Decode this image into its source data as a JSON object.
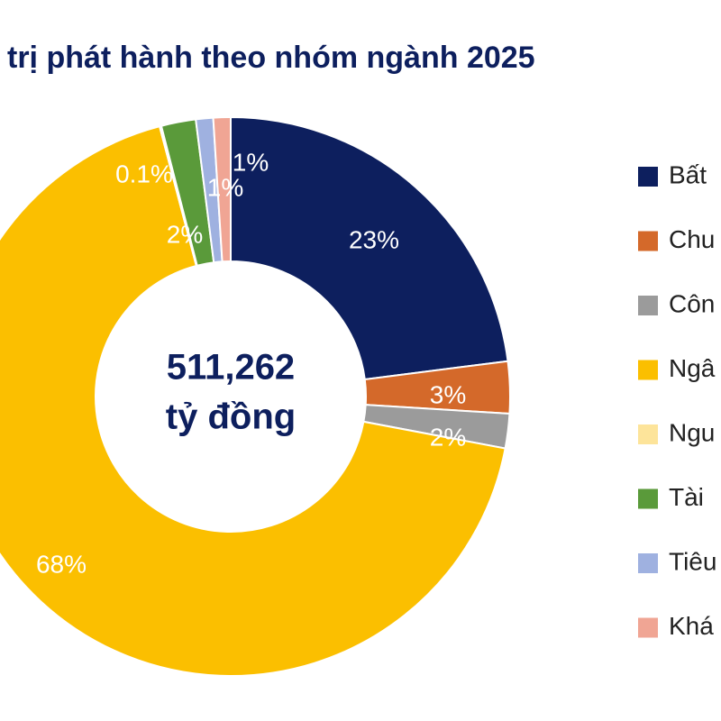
{
  "chart_data": {
    "type": "pie",
    "title": "trị phát hành theo nhóm ngành 2025",
    "center_label": [
      "511,262",
      "tỷ đồng"
    ],
    "categories": [
      "Bất",
      "Chu",
      "Côn",
      "Ngâ",
      "Ngu",
      "Tài",
      "Tiêu",
      "Khá"
    ],
    "values": [
      23,
      3,
      2,
      68,
      0.1,
      2,
      1,
      1
    ],
    "value_labels": [
      "23%",
      "3%",
      "2%",
      "68%",
      "0.1%",
      "2%",
      "1%",
      "1%"
    ],
    "colors": [
      "#0d1f5e",
      "#d4692a",
      "#9b9b9b",
      "#fbbf00",
      "#fde49a",
      "#5a9a3a",
      "#9fb1e0",
      "#f0a594"
    ],
    "donut": true
  }
}
